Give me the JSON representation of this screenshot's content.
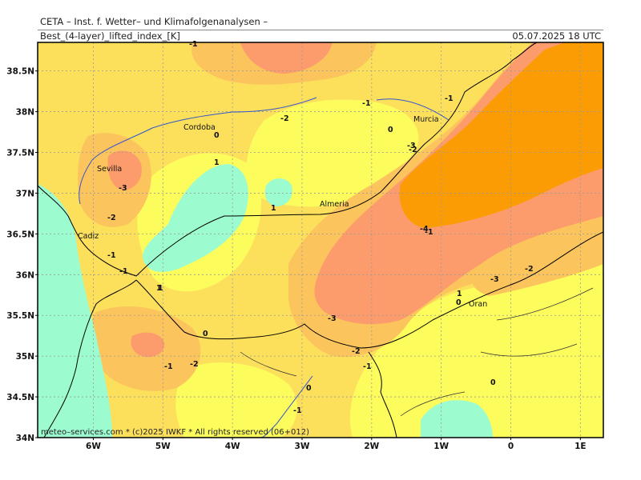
{
  "header": {
    "source": "CETA – Inst. f. Wetter– und Klimafolgenanalysen –",
    "product": "Best_(4-layer)_lifted_index_[K]",
    "valid_time": "05.07.2025  18 UTC"
  },
  "axes": {
    "lat_labels": [
      "38.5N",
      "38N",
      "37.5N",
      "37N",
      "36.5N",
      "36N",
      "35.5N",
      "35N",
      "34.5N",
      "34N"
    ],
    "lon_labels": [
      "6W",
      "5W",
      "4W",
      "3W",
      "2W",
      "1W",
      "0",
      "1E"
    ]
  },
  "cities": [
    "Cordoba",
    "Murcia",
    "Sevilla",
    "Almeria",
    "Cadiz",
    "Oran"
  ],
  "contour_labels": [
    "-1",
    "-1",
    "-1",
    "-2",
    "0",
    "-2",
    "-3",
    "1",
    "0",
    "-3",
    "-2",
    "1",
    "1",
    "-4",
    "-1",
    "-1",
    "1",
    "-2",
    "-3",
    "-1",
    "1",
    "0",
    "0",
    "-3",
    "-2",
    "-2",
    "-1",
    "-1",
    "0",
    "-1",
    "0"
  ],
  "footer": "meteo–services.com  *  (c)2025 IWKF * All rights reserved (06+012)",
  "colors": {
    "positive_cyan": "#9cfccf",
    "zero_yellow": "#fcfc5c",
    "minus1": "#fce05c",
    "minus2": "#fcc45c",
    "minus3": "#fc9c6c",
    "minus4": "#fc9c04"
  }
}
